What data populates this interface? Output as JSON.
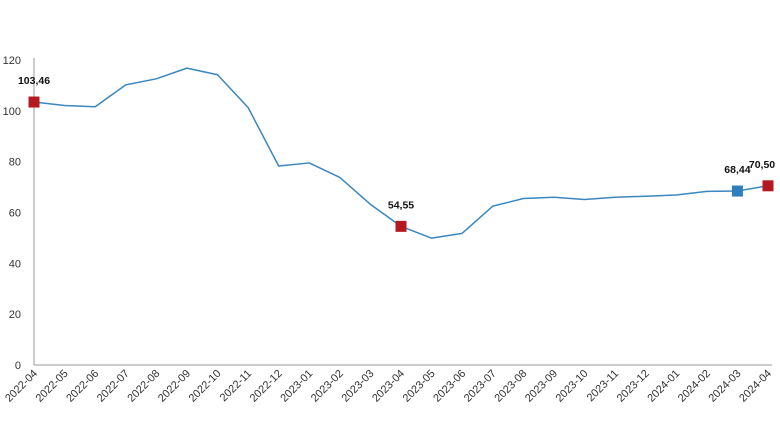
{
  "chart_data": {
    "type": "line",
    "title": "",
    "xlabel": "",
    "ylabel": "",
    "ylim": [
      0,
      120
    ],
    "yticks": [
      0,
      20,
      40,
      60,
      80,
      100,
      120
    ],
    "grid": false,
    "line_color": "#3a87c0",
    "categories": [
      "2022-04",
      "2022-05",
      "2022-06",
      "2022-07",
      "2022-08",
      "2022-09",
      "2022-10",
      "2022-11",
      "2022-12",
      "2023-01",
      "2023-02",
      "2023-03",
      "2023-04",
      "2023-05",
      "2023-06",
      "2023-07",
      "2023-08",
      "2023-09",
      "2023-10",
      "2023-11",
      "2023-12",
      "2024-01",
      "2024-02",
      "2024-03",
      "2024-04"
    ],
    "series": [
      {
        "values": [
          103.46,
          102.1,
          101.6,
          110.2,
          112.6,
          116.8,
          114.2,
          101.3,
          78.3,
          79.5,
          73.8,
          63.2,
          54.55,
          49.9,
          51.8,
          62.5,
          65.5,
          66.0,
          65.1,
          66.0,
          66.4,
          66.9,
          68.3,
          68.44,
          70.5
        ]
      }
    ],
    "highlights": [
      {
        "index": 0,
        "label": "103,46",
        "color": "#b5191f"
      },
      {
        "index": 12,
        "label": "54,55",
        "color": "#b5191f"
      },
      {
        "index": 23,
        "label": "68,44",
        "color": "#2e7fbf"
      },
      {
        "index": 24,
        "label": "70,50",
        "color": "#b5191f"
      }
    ]
  }
}
